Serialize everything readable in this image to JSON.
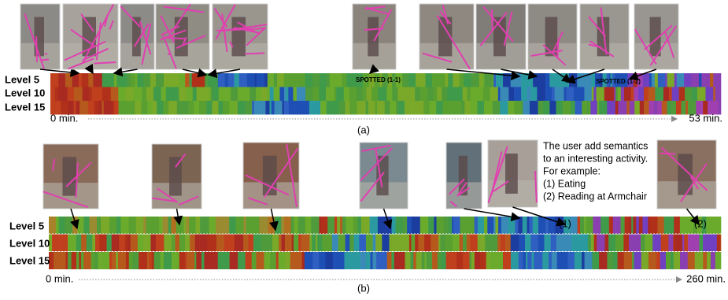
{
  "panel_a": {
    "levels": [
      "Level 5",
      "Level 10",
      "Level 15"
    ],
    "start": "0 min.",
    "end": "53 min.",
    "caption": "(a)",
    "spotted": [
      "SPOTTED (1-1)",
      "SPOTTED (1-1)"
    ]
  },
  "panel_b": {
    "levels": [
      "Level 5",
      "Level 10",
      "Level 15"
    ],
    "start": "0 min.",
    "end": "260 min.",
    "caption": "(b)",
    "note": [
      "The user add semantics",
      "to an interesting activity.",
      "For example:",
      "(1) Eating",
      "(2) Reading at Armchair"
    ],
    "markers": [
      "(1)",
      "(2)"
    ]
  }
}
